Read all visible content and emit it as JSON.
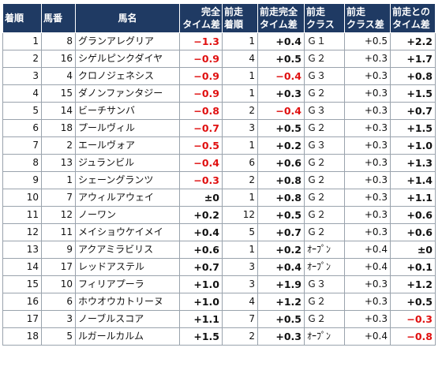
{
  "headers": {
    "rank": "着順",
    "number": "馬番",
    "horse": "馬名",
    "diff": [
      "完全",
      "タイム差"
    ],
    "prev_rank": [
      "前走",
      "着順"
    ],
    "prev_diff": [
      "前走完全",
      "タイム差"
    ],
    "prev_class": [
      "前走",
      "クラス"
    ],
    "class_diff": [
      "前走",
      "クラス差"
    ],
    "prev_total": [
      "前走との",
      "タイム差"
    ]
  },
  "rows": [
    {
      "rank": "1",
      "number": "8",
      "horse": "グランアレグリア",
      "diff": "−1.3",
      "prev_rank": "1",
      "prev_diff": "+0.4",
      "prev_class": "Ｇ１",
      "class_diff": "+0.5",
      "total": "+2.2"
    },
    {
      "rank": "2",
      "number": "16",
      "horse": "シゲルピンクダイヤ",
      "diff": "−0.9",
      "prev_rank": "4",
      "prev_diff": "+0.5",
      "prev_class": "Ｇ２",
      "class_diff": "+0.3",
      "total": "+1.7"
    },
    {
      "rank": "3",
      "number": "4",
      "horse": "クロノジェネシス",
      "diff": "−0.9",
      "prev_rank": "1",
      "prev_diff": "−0.4",
      "prev_class": "Ｇ３",
      "class_diff": "+0.3",
      "total": "+0.8"
    },
    {
      "rank": "4",
      "number": "15",
      "horse": "ダノンファンタジー",
      "diff": "−0.9",
      "prev_rank": "1",
      "prev_diff": "+0.3",
      "prev_class": "Ｇ２",
      "class_diff": "+0.3",
      "total": "+1.5"
    },
    {
      "rank": "5",
      "number": "14",
      "horse": "ビーチサンバ",
      "diff": "−0.8",
      "prev_rank": "2",
      "prev_diff": "−0.4",
      "prev_class": "Ｇ３",
      "class_diff": "+0.3",
      "total": "+0.7"
    },
    {
      "rank": "6",
      "number": "18",
      "horse": "プールヴィル",
      "diff": "−0.7",
      "prev_rank": "3",
      "prev_diff": "+0.5",
      "prev_class": "Ｇ２",
      "class_diff": "+0.3",
      "total": "+1.5"
    },
    {
      "rank": "7",
      "number": "2",
      "horse": "エールヴォア",
      "diff": "−0.5",
      "prev_rank": "1",
      "prev_diff": "+0.2",
      "prev_class": "Ｇ３",
      "class_diff": "+0.3",
      "total": "+1.0"
    },
    {
      "rank": "8",
      "number": "13",
      "horse": "ジュランビル",
      "diff": "−0.4",
      "prev_rank": "6",
      "prev_diff": "+0.6",
      "prev_class": "Ｇ２",
      "class_diff": "+0.3",
      "total": "+1.3"
    },
    {
      "rank": "9",
      "number": "1",
      "horse": "シェーングランツ",
      "diff": "−0.3",
      "prev_rank": "2",
      "prev_diff": "+0.8",
      "prev_class": "Ｇ２",
      "class_diff": "+0.3",
      "total": "+1.4"
    },
    {
      "rank": "10",
      "number": "7",
      "horse": "アウィルアウェイ",
      "diff": "±0",
      "prev_rank": "1",
      "prev_diff": "+0.8",
      "prev_class": "Ｇ２",
      "class_diff": "+0.3",
      "total": "+1.1"
    },
    {
      "rank": "11",
      "number": "12",
      "horse": "ノーワン",
      "diff": "+0.2",
      "prev_rank": "12",
      "prev_diff": "+0.5",
      "prev_class": "Ｇ２",
      "class_diff": "+0.3",
      "total": "+0.6"
    },
    {
      "rank": "12",
      "number": "11",
      "horse": "メイショウケイメイ",
      "diff": "+0.4",
      "prev_rank": "5",
      "prev_diff": "+0.7",
      "prev_class": "Ｇ２",
      "class_diff": "+0.3",
      "total": "+0.6"
    },
    {
      "rank": "13",
      "number": "9",
      "horse": "アクアミラビリス",
      "diff": "+0.6",
      "prev_rank": "1",
      "prev_diff": "+0.2",
      "prev_class": "ｵｰﾌﾟﾝ",
      "class_diff": "+0.4",
      "total": "±0"
    },
    {
      "rank": "14",
      "number": "17",
      "horse": "レッドアステル",
      "diff": "+0.7",
      "prev_rank": "3",
      "prev_diff": "+0.4",
      "prev_class": "ｵｰﾌﾟﾝ",
      "class_diff": "+0.4",
      "total": "+0.1"
    },
    {
      "rank": "15",
      "number": "10",
      "horse": "フィリアプーラ",
      "diff": "+1.0",
      "prev_rank": "3",
      "prev_diff": "+1.9",
      "prev_class": "Ｇ３",
      "class_diff": "+0.3",
      "total": "+1.2"
    },
    {
      "rank": "16",
      "number": "6",
      "horse": "ホウオウカトリーヌ",
      "diff": "+1.0",
      "prev_rank": "4",
      "prev_diff": "+1.2",
      "prev_class": "Ｇ２",
      "class_diff": "+0.3",
      "total": "+0.5"
    },
    {
      "rank": "17",
      "number": "3",
      "horse": "ノーブルスコア",
      "diff": "+1.1",
      "prev_rank": "7",
      "prev_diff": "+0.5",
      "prev_class": "Ｇ２",
      "class_diff": "+0.3",
      "total": "−0.3"
    },
    {
      "rank": "18",
      "number": "5",
      "horse": "ルガールカルム",
      "diff": "+1.5",
      "prev_rank": "2",
      "prev_diff": "+0.3",
      "prev_class": "ｵｰﾌﾟﾝ",
      "class_diff": "+0.4",
      "total": "−0.8"
    }
  ]
}
